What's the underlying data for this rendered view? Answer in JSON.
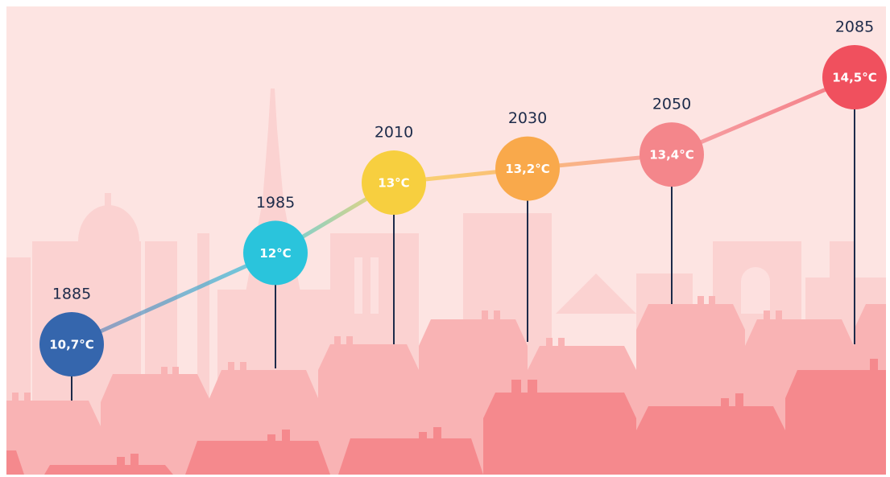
{
  "chart_data": {
    "type": "line",
    "categories": [
      "1885",
      "1985",
      "2010",
      "2030",
      "2050",
      "2085"
    ],
    "values": [
      10.7,
      12,
      13,
      13.2,
      13.4,
      14.5
    ],
    "value_labels": [
      "10,7°C",
      "12°C",
      "13°C",
      "13,2°C",
      "13,4°C",
      "14,5°C"
    ],
    "colors": [
      "#3566ad",
      "#2ac4dc",
      "#f7cf3f",
      "#f9a94b",
      "#f4868b",
      "#f0505e"
    ]
  }
}
